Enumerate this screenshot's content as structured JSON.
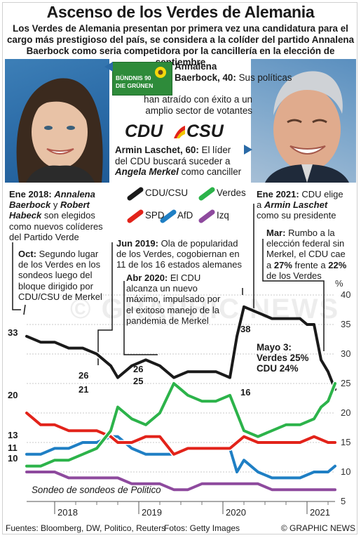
{
  "title": "Ascenso de los Verdes de Alemania",
  "subtitle_lines": [
    "Los Verdes de Alemania presentan por primera vez una candidatura para el",
    "cargo más prestigioso del país, se considera a la colíder del partido Annalena",
    "Baerbock como seria competidora por la cancillería en la elección de septiembre"
  ],
  "baerbock": {
    "name_l1": "Annalena",
    "name_l2": "Baerbock, 40:",
    "text_l1": "Sus políticas",
    "text_l2": "han atraído con éxito a un",
    "text_l3": "amplio sector de votantes",
    "logo_l1": "BÜNDNIS 90",
    "logo_l2": "DIE GRÜNEN"
  },
  "laschet": {
    "name": "Armin Laschet, 60:",
    "text_a": "El líder",
    "text_l2": "del CDU buscará suceder a",
    "merkel": "Angela Merkel",
    "text_l3": "como canciller",
    "logo_cdu": "CDU",
    "logo_csu": "CSU"
  },
  "annotations": {
    "ene2018_date": "Ene 2018:",
    "ene2018_names1": "Annalena",
    "ene2018_names2a": "Baerbock",
    "ene2018_y": "y",
    "ene2018_names2b": "Robert",
    "ene2018_names3": "Habeck",
    "ene2018_t1": "son elegidos",
    "ene2018_t2": "como nuevos colíderes",
    "ene2018_t3": "del Partido Verde",
    "oct_date": "Oct:",
    "oct_t1": "Segundo lugar",
    "oct_t2": "de los Verdes en los",
    "oct_t3": "sondeos luego del",
    "oct_t4": "bloque dirigido por",
    "oct_t5": "CDU/CSU de Merkel",
    "jun2019_date": "Jun 2019:",
    "jun2019_t1": "Ola de popularidad",
    "jun2019_t2": "de los Verdes, cogobiernan en",
    "jun2019_t3": "11 de los 16 estados alemanes",
    "abr2020_date": "Abr 2020:",
    "abr2020_t0": "El CDU",
    "abr2020_t1": "alcanza un nuevo",
    "abr2020_t2": "máximo, impulsado por",
    "abr2020_t3": "el exitoso manejo de la",
    "abr2020_t4": "pandemia de Merkel",
    "ene2021_date": "Ene 2021:",
    "ene2021_t0": "CDU elige",
    "ene2021_t1a": "a",
    "ene2021_name": "Armin Laschet",
    "ene2021_t2": "como su presidente",
    "mar_date": "Mar:",
    "mar_t0": "Rumbo a la",
    "mar_t1": "elección federal sin",
    "mar_t2": "Merkel, el CDU cae",
    "mar_t3a": "a",
    "mar_v1": "27%",
    "mar_t3b": "frente a",
    "mar_v2": "22%",
    "mar_t4": "de los Verdes",
    "mayo_l1": "Mayo 3:",
    "mayo_l2": "Verdes 25%",
    "mayo_l3": "CDU 24%",
    "poll_note": "Sondeo de sondeos de Politico"
  },
  "footer": {
    "source": "Fuentes: Bloomberg, DW, Politico, Reuters",
    "photos": "Fotos: Getty Images",
    "brand": "© GRAPHIC NEWS"
  },
  "watermark": "© GRAPHIC NEWS",
  "value_labels": {
    "cdu_start": "33",
    "cdu_low1": "26",
    "cdu_low2": "26",
    "cdu_peak": "38",
    "green_21": "21",
    "green_25": "25",
    "green_16": "16",
    "spd_start": "20",
    "afd_start": "13",
    "fdp_start": "11",
    "left_start": "10"
  },
  "chart_data": {
    "type": "line",
    "ylabel": "%",
    "ylim": [
      5,
      40
    ],
    "yticks": [
      5,
      10,
      15,
      20,
      25,
      30,
      35,
      40
    ],
    "xticks": [
      "2018",
      "2019",
      "2020",
      "2021"
    ],
    "x_range": [
      "2017-09",
      "2021-05"
    ],
    "legend": [
      "CDU/CSU",
      "Verdes",
      "SPD",
      "AfD",
      "Izq"
    ],
    "series": [
      {
        "name": "CDU/CSU",
        "color": "#1a1a1a",
        "x": [
          "2017-09",
          "2017-11",
          "2018-01",
          "2018-03",
          "2018-05",
          "2018-07",
          "2018-09",
          "2018-10",
          "2018-12",
          "2019-02",
          "2019-04",
          "2019-06",
          "2019-08",
          "2019-10",
          "2019-12",
          "2020-02",
          "2020-03",
          "2020-04",
          "2020-06",
          "2020-08",
          "2020-10",
          "2020-12",
          "2021-01",
          "2021-02",
          "2021-03",
          "2021-04",
          "2021-05"
        ],
        "values": [
          33,
          32,
          32,
          31,
          31,
          30,
          28,
          26,
          28,
          29,
          28,
          26,
          27,
          27,
          27,
          26,
          33,
          38,
          37,
          36,
          36,
          36,
          35,
          35,
          29,
          27,
          24
        ]
      },
      {
        "name": "Verdes",
        "color": "#2cb34a",
        "x": [
          "2017-09",
          "2017-11",
          "2018-01",
          "2018-03",
          "2018-05",
          "2018-07",
          "2018-09",
          "2018-10",
          "2018-12",
          "2019-02",
          "2019-04",
          "2019-06",
          "2019-08",
          "2019-10",
          "2019-12",
          "2020-02",
          "2020-04",
          "2020-06",
          "2020-08",
          "2020-10",
          "2020-12",
          "2021-02",
          "2021-03",
          "2021-04",
          "2021-05"
        ],
        "values": [
          11,
          11,
          12,
          12,
          13,
          14,
          17,
          21,
          19,
          18,
          20,
          25,
          23,
          22,
          22,
          23,
          17,
          16,
          17,
          18,
          18,
          19,
          21,
          22,
          25
        ]
      },
      {
        "name": "SPD",
        "color": "#e2231a",
        "x": [
          "2017-09",
          "2017-11",
          "2018-01",
          "2018-03",
          "2018-05",
          "2018-07",
          "2018-09",
          "2018-10",
          "2018-12",
          "2019-02",
          "2019-04",
          "2019-06",
          "2019-08",
          "2019-10",
          "2019-12",
          "2020-02",
          "2020-04",
          "2020-06",
          "2020-08",
          "2020-10",
          "2020-12",
          "2021-02",
          "2021-04",
          "2021-05"
        ],
        "values": [
          20,
          18,
          18,
          17,
          17,
          17,
          16,
          15,
          15,
          16,
          16,
          13,
          14,
          14,
          14,
          14,
          16,
          15,
          15,
          15,
          15,
          16,
          15,
          15
        ]
      },
      {
        "name": "AfD",
        "color": "#1f7fc4",
        "x": [
          "2017-09",
          "2017-11",
          "2018-01",
          "2018-03",
          "2018-05",
          "2018-07",
          "2018-09",
          "2018-10",
          "2018-12",
          "2019-02",
          "2019-04",
          "2019-06",
          "2019-08",
          "2019-10",
          "2019-12",
          "2020-02",
          "2020-03",
          "2020-04",
          "2020-06",
          "2020-08",
          "2020-10",
          "2020-12",
          "2021-02",
          "2021-04",
          "2021-05"
        ],
        "values": [
          13,
          13,
          14,
          14,
          15,
          15,
          16,
          16,
          14,
          13,
          13,
          13,
          14,
          14,
          14,
          14,
          10,
          12,
          10,
          9,
          9,
          9,
          10,
          10,
          11
        ]
      },
      {
        "name": "Izq",
        "color": "#8e4a9e",
        "x": [
          "2017-09",
          "2017-11",
          "2018-01",
          "2018-03",
          "2018-05",
          "2018-07",
          "2018-09",
          "2018-10",
          "2018-12",
          "2019-02",
          "2019-04",
          "2019-06",
          "2019-08",
          "2019-10",
          "2019-12",
          "2020-02",
          "2020-04",
          "2020-06",
          "2020-08",
          "2020-10",
          "2020-12",
          "2021-02",
          "2021-04",
          "2021-05"
        ],
        "values": [
          10,
          10,
          10,
          9,
          9,
          9,
          9,
          9,
          8,
          8,
          8,
          7,
          7,
          8,
          8,
          8,
          8,
          8,
          7,
          7,
          7,
          7,
          7,
          7
        ]
      }
    ]
  }
}
